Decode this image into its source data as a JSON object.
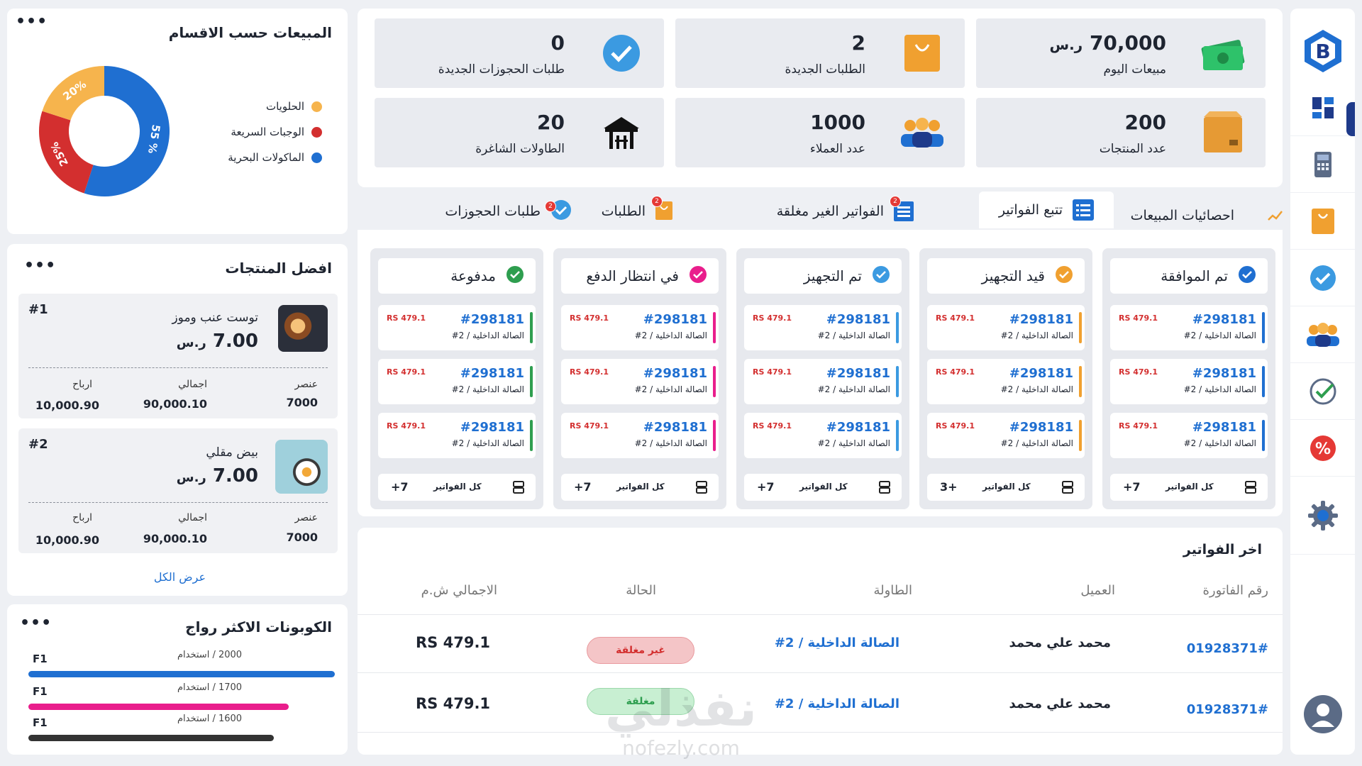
{
  "colors": {
    "accent": "#1f6fd1",
    "primary_dark": "#1e3a8a",
    "danger": "#e53935",
    "success": "#2e7d32",
    "pink": "#e91e8c"
  },
  "sidebar": {
    "icons": [
      "logo-icon",
      "dashboard-icon",
      "pos-terminal-icon",
      "orders-bag-icon",
      "reservations-check-icon",
      "customers-icon",
      "approved-check-icon",
      "discount-percent-icon",
      "settings-gear-icon",
      "user-avatar-icon"
    ]
  },
  "stats": [
    {
      "value": "70,000",
      "currency": "ر.س",
      "label": "مبيعات اليوم",
      "icon": "money-icon"
    },
    {
      "value": "2",
      "label": "الطلبات الجديدة",
      "icon": "shopping-bag-icon"
    },
    {
      "value": "0",
      "label": "طلبات الحجوزات الجديدة",
      "icon": "verified-badge-icon"
    },
    {
      "value": "200",
      "label": "عدد المنتجات",
      "icon": "box-icon"
    },
    {
      "value": "1000",
      "label": "عدد العملاء",
      "icon": "customers-group-icon"
    },
    {
      "value": "20",
      "label": "الطاولات الشاغرة",
      "icon": "table-chairs-icon"
    }
  ],
  "tabs": [
    {
      "label": "احصائيات المبيعات",
      "icon": "trend-icon"
    },
    {
      "label": "تتبع الفواتير",
      "icon": "list-icon",
      "active": true
    },
    {
      "label": "الفواتير الغير مغلقة",
      "icon": "receipt-icon",
      "badge": "2"
    },
    {
      "label": "الطلبات",
      "icon": "bag-icon",
      "badge": "2"
    },
    {
      "label": "طلبات الحجوزات",
      "icon": "reservation-icon",
      "badge": "2"
    }
  ],
  "kanban": {
    "invoice_no": "#298181",
    "invoice_loc": "الصالة الداخلية / 2#",
    "invoice_amount": "RS 479.1",
    "all_invoices": "كل الفواتير",
    "columns": [
      {
        "title": "تم الموافقة",
        "color": "#1f6fd1",
        "count": "+7"
      },
      {
        "title": "قيد التجهيز",
        "color": "#f0a030",
        "count": "3+"
      },
      {
        "title": "تم التجهيز",
        "color": "#3b9ae1",
        "count": "+7"
      },
      {
        "title": "في انتظار الدفع",
        "color": "#e91e8c",
        "count": "+7"
      },
      {
        "title": "مدفوعة",
        "color": "#2e9e4f",
        "count": "+7"
      }
    ]
  },
  "invoices_table": {
    "title": "اخر الفواتير",
    "headers": [
      "رقم الفاتورة",
      "العميل",
      "الطاولة",
      "الحالة",
      "الاجمالي ش.م"
    ],
    "rows": [
      {
        "no": "01928371#",
        "customer": "محمد علي محمد",
        "table": "الصالة الداخلية / 2#",
        "status": "غير مغلقة",
        "status_type": "open",
        "total": "RS 479.1"
      },
      {
        "no": "01928371#",
        "customer": "محمد علي محمد",
        "table": "الصالة الداخلية / 2#",
        "status": "مغلقة",
        "status_type": "closed",
        "total": "RS 479.1"
      }
    ]
  },
  "sales_by_section": {
    "title": "المبيعات حسب الاقسام",
    "legend": [
      {
        "label": "الحلويات",
        "color": "#f6b44d"
      },
      {
        "label": "الوجبات السريعة",
        "color": "#d32f2f"
      },
      {
        "label": "الماكولات البحرية",
        "color": "#1f6fd1"
      }
    ],
    "chart_data": {
      "type": "pie",
      "categories": [
        "الماكولات البحرية",
        "الوجبات السريعة",
        "الحلويات"
      ],
      "values": [
        55,
        25,
        20
      ],
      "labels": [
        "55 %",
        "25%",
        "20%"
      ],
      "colors": [
        "#1f6fd1",
        "#d32f2f",
        "#f6b44d"
      ]
    }
  },
  "top_products": {
    "title": "افضل المنتجات",
    "view_all": "عرض الكل",
    "stat_labels": {
      "item": "عنصر",
      "total": "اجمالي",
      "profit": "ارباح"
    },
    "items": [
      {
        "rank": "#1",
        "name": "توست عنب وموز",
        "price": "7.00",
        "currency": "ر.س",
        "item": "7000",
        "total": "90,000.10",
        "profit": "10,000.90"
      },
      {
        "rank": "#2",
        "name": "بيض مقلي",
        "price": "7.00",
        "currency": "ر.س",
        "item": "7000",
        "total": "90,000.10",
        "profit": "10,000.90"
      }
    ]
  },
  "coupons": {
    "title": "الكوبونات الاكثر رواج",
    "usage_label": "استخدام",
    "items": [
      {
        "code": "F1",
        "uses": "2000",
        "color": "#1f6fd1",
        "fraction": 1.0
      },
      {
        "code": "F1",
        "uses": "1700",
        "color": "#e91e8c",
        "fraction": 0.85
      },
      {
        "code": "F1",
        "uses": "1600",
        "color": "#333333",
        "fraction": 0.8
      }
    ]
  },
  "more_label": "•••"
}
